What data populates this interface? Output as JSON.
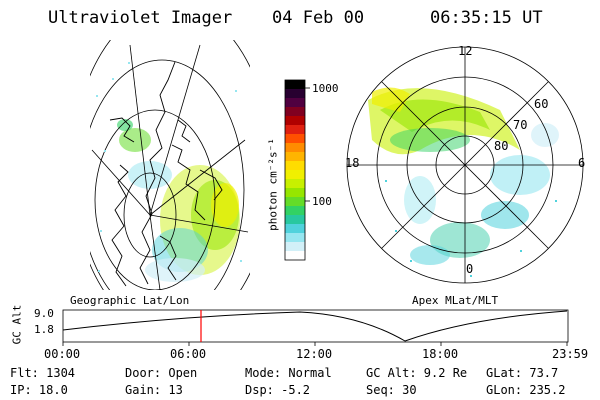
{
  "header": {
    "instrument": "Ultraviolet Imager",
    "date": "04 Feb 00",
    "time": "06:35:15 UT"
  },
  "colorbar": {
    "label": "photon cm⁻²s⁻¹",
    "ticks": [
      "1000",
      "100"
    ],
    "colors": [
      "#000000",
      "#280030",
      "#500040",
      "#800020",
      "#b00000",
      "#e02010",
      "#ff5000",
      "#ff8c00",
      "#ffb400",
      "#ffdc00",
      "#f0f000",
      "#c8f000",
      "#96e600",
      "#64dc28",
      "#32d264",
      "#28c8a0",
      "#50d2dc",
      "#96e6f0",
      "#d2f0f8",
      "#ffffff"
    ]
  },
  "left_map": {
    "caption": "Geographic Lat/Lon"
  },
  "right_map": {
    "caption": "Apex MLat/MLT",
    "mlt_labels": [
      "12",
      "18",
      "6",
      "0"
    ],
    "lat_labels": [
      "80",
      "70",
      "60"
    ]
  },
  "altitude_plot": {
    "ylabel": "GC Alt",
    "y_ticks": [
      "9.0",
      "1.8"
    ],
    "x_ticks": [
      "00:00",
      "06:00",
      "12:00",
      "18:00",
      "23:59"
    ],
    "marker_color": "#ff0000"
  },
  "status": {
    "flt": "Flt: 1304",
    "ip": "IP: 18.0",
    "door": "Door: Open",
    "gain": "Gain: 13",
    "mode": "Mode: Normal",
    "dsp": "Dsp:    -5.2",
    "gc_alt": "GC Alt: 9.2 Re",
    "seq": "Seq: 30",
    "glat": "GLat:   73.7",
    "glon": "GLon: 235.2"
  }
}
